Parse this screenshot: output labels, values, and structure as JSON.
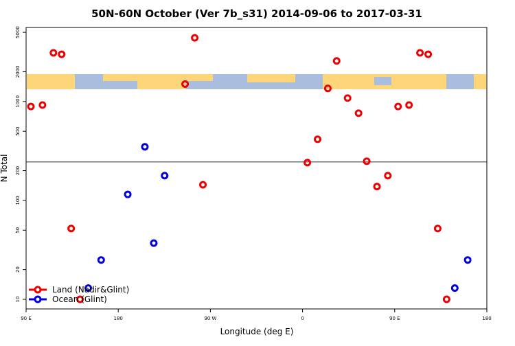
{
  "chart_data": {
    "type": "scatter",
    "title": "50N-60N October (Ver 7b_s31)   2014-09-06 to 2017-03-31",
    "x_label": "Longitude (deg E)",
    "y_label": "N Total",
    "xlim": [
      90,
      540
    ],
    "xticks": [
      {
        "value": 90,
        "label": "90 E"
      },
      {
        "value": 180,
        "label": "180"
      },
      {
        "value": 270,
        "label": "90 W"
      },
      {
        "value": 360,
        "label": "0"
      },
      {
        "value": 450,
        "label": "90 E"
      },
      {
        "value": 540,
        "label": "180"
      }
    ],
    "ylim": [
      8,
      5600
    ],
    "y_log": true,
    "yticks": [
      10,
      20,
      50,
      100,
      200,
      500,
      1000,
      2000,
      5000
    ],
    "reference_line": 245,
    "legend": "bottom-left",
    "series": [
      {
        "name": "Land (Nadir&Glint)",
        "color": "#ee0000",
        "x": [
          94.7,
          106,
          116.7,
          124.7,
          134,
          142.7,
          245.3,
          254.7,
          262.7,
          364.7,
          374.7,
          384.7,
          393.3,
          404,
          414.7,
          422.7,
          432.7,
          443.3,
          453.3,
          464,
          474.7,
          482.7,
          492,
          500.7
        ],
        "values": [
          890,
          920,
          3100,
          3000,
          52,
          10,
          1500,
          4400,
          144,
          241,
          415,
          1355,
          2570,
          1083,
          762,
          249,
          138,
          178,
          890,
          920,
          3100,
          3000,
          52,
          10
        ]
      },
      {
        "name": "Ocean (Glint)",
        "color": "#0000dd",
        "x": [
          150.7,
          163.3,
          189.3,
          206,
          214.7,
          225.3,
          508.7,
          521.3
        ],
        "values": [
          13,
          25,
          115,
          348,
          37,
          178,
          13,
          25
        ]
      }
    ]
  }
}
